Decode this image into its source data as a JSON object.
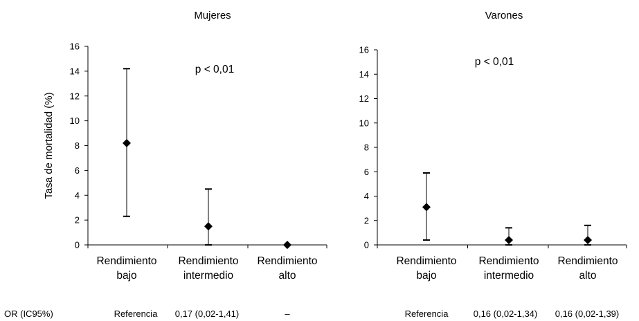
{
  "chart_data": [
    {
      "type": "scatter",
      "title": "Mujeres",
      "ylabel": "Tasa de mortalidad (%)",
      "ylim": [
        0,
        16
      ],
      "yticks": [
        0,
        2,
        4,
        6,
        8,
        10,
        12,
        14,
        16
      ],
      "categories": [
        [
          "Rendimiento",
          "bajo"
        ],
        [
          "Rendimiento",
          "intermedio"
        ],
        [
          "Rendimiento",
          "alto"
        ]
      ],
      "values": [
        8.2,
        1.5,
        0.0
      ],
      "ci_low": [
        2.3,
        0.0,
        null
      ],
      "ci_high": [
        14.2,
        4.5,
        null
      ],
      "annotation": "p < 0,01",
      "or": [
        "Referencia",
        "0,17 (0,02-1,41)",
        "–"
      ]
    },
    {
      "type": "scatter",
      "title": "Varones",
      "ylabel": "",
      "ylim": [
        0,
        16
      ],
      "yticks": [
        0,
        2,
        4,
        6,
        8,
        10,
        12,
        14,
        16
      ],
      "categories": [
        [
          "Rendimiento",
          "bajo"
        ],
        [
          "Rendimiento",
          "intermedio"
        ],
        [
          "Rendimiento",
          "alto"
        ]
      ],
      "values": [
        3.1,
        0.4,
        0.4
      ],
      "ci_low": [
        0.4,
        0.0,
        0.0
      ],
      "ci_high": [
        5.9,
        1.4,
        1.6
      ],
      "annotation": "p < 0,01",
      "or": [
        "Referencia",
        "0,16 (0,02-1,34)",
        "0,16 (0,02-1,39)"
      ]
    }
  ],
  "or_label": "OR (IC95%)"
}
